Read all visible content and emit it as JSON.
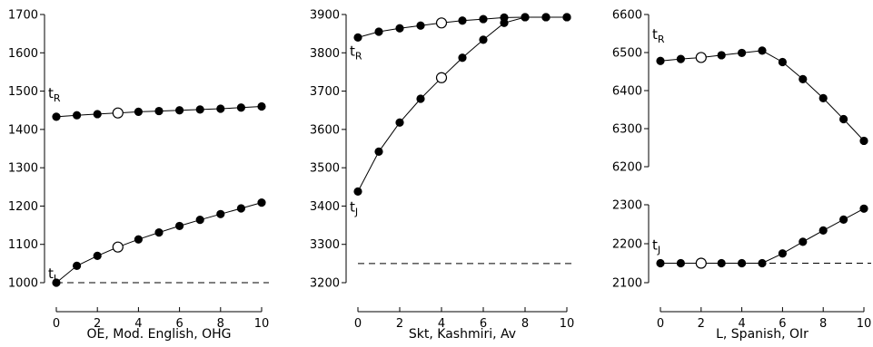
{
  "chart_data": [
    {
      "type": "line",
      "xlabel": "OE, Mod. English, OHG",
      "x": [
        0,
        1,
        2,
        3,
        4,
        5,
        6,
        7,
        8,
        9,
        10
      ],
      "x_ticks": [
        0,
        2,
        4,
        6,
        8,
        10
      ],
      "ylim": [
        1000,
        1700
      ],
      "y_ticks": [
        1000,
        1100,
        1200,
        1300,
        1400,
        1500,
        1600,
        1700
      ],
      "reference_line": 1000,
      "series": [
        {
          "name": "tR",
          "label_main": "t",
          "label_sub": "R",
          "values": [
            1433,
            1437,
            1440,
            1443,
            1446,
            1448,
            1450,
            1452,
            1454,
            1457,
            1460
          ],
          "open_index": 3
        },
        {
          "name": "tJ",
          "label_main": "t",
          "label_sub": "J",
          "values": [
            1000,
            1044,
            1070,
            1093,
            1113,
            1131,
            1148,
            1164,
            1179,
            1194,
            1209
          ],
          "open_index": 3
        }
      ]
    },
    {
      "type": "line",
      "xlabel": "Skt, Kashmiri, Av",
      "x": [
        0,
        1,
        2,
        3,
        4,
        5,
        6,
        7,
        8,
        9,
        10
      ],
      "x_ticks": [
        0,
        2,
        4,
        6,
        8,
        10
      ],
      "ylim": [
        3200,
        3900
      ],
      "y_ticks": [
        3200,
        3300,
        3400,
        3500,
        3600,
        3700,
        3800,
        3900
      ],
      "reference_line": 3250,
      "series": [
        {
          "name": "tR",
          "label_main": "t",
          "label_sub": "R",
          "values": [
            3840,
            3855,
            3864,
            3871,
            3878,
            3884,
            3888,
            3892,
            3893,
            3893,
            3893
          ],
          "open_index": 4
        },
        {
          "name": "tJ",
          "label_main": "t",
          "label_sub": "J",
          "values": [
            3438,
            3542,
            3618,
            3680,
            3735,
            3787,
            3834,
            3878,
            3893,
            3893,
            3893
          ],
          "open_index": 4
        }
      ]
    },
    {
      "type": "line",
      "xlabel": "L, Spanish, OIr",
      "x": [
        0,
        1,
        2,
        3,
        4,
        5,
        6,
        7,
        8,
        9,
        10
      ],
      "x_ticks": [
        0,
        2,
        4,
        6,
        8,
        10
      ],
      "axis_break": true,
      "upper": {
        "ylim": [
          6200,
          6600
        ],
        "y_ticks": [
          6200,
          6300,
          6400,
          6500,
          6600
        ]
      },
      "lower": {
        "ylim": [
          2100,
          2300
        ],
        "y_ticks": [
          2100,
          2200,
          2300
        ],
        "reference_line": 2150
      },
      "series": [
        {
          "name": "tR",
          "label_main": "t",
          "label_sub": "R",
          "panel": "upper",
          "values": [
            6478,
            6483,
            6487,
            6493,
            6499,
            6505,
            6475,
            6430,
            6380,
            6325,
            6268
          ],
          "open_index": 2
        },
        {
          "name": "tJ",
          "label_main": "t",
          "label_sub": "J",
          "panel": "lower",
          "values": [
            2150,
            2150,
            2150,
            2150,
            2150,
            2150,
            2175,
            2205,
            2234,
            2262,
            2290
          ],
          "open_index": 2
        }
      ]
    }
  ]
}
